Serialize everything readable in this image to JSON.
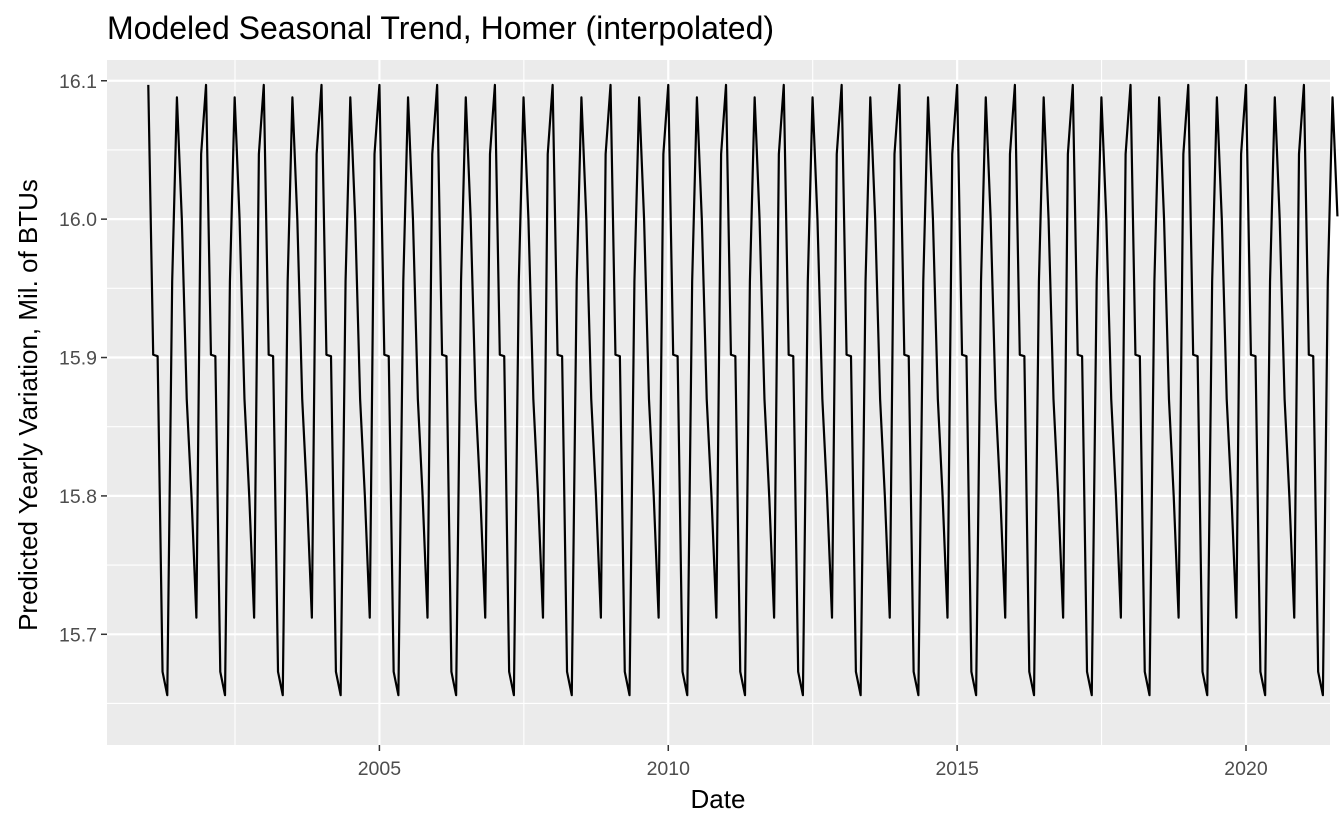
{
  "chart_data": {
    "type": "line",
    "title": "Modeled Seasonal Trend, Homer (interpolated)",
    "xlabel": "Date",
    "ylabel": "Predicted Yearly Variation, Mil. of BTUs",
    "xlim": [
      "2000-04-15",
      "2021-06-15"
    ],
    "ylim": [
      15.62,
      16.115
    ],
    "x_ticks": [
      {
        "label": "2005",
        "value": "2005-01-01"
      },
      {
        "label": "2010",
        "value": "2010-01-01"
      },
      {
        "label": "2015",
        "value": "2015-01-01"
      },
      {
        "label": "2020",
        "value": "2020-01-01"
      }
    ],
    "y_ticks": [
      {
        "label": "15.7",
        "value": 15.7
      },
      {
        "label": "15.8",
        "value": 15.8
      },
      {
        "label": "15.9",
        "value": 15.9
      },
      {
        "label": "16.0",
        "value": 16.0
      },
      {
        "label": "16.1",
        "value": 16.1
      }
    ],
    "grid": true,
    "panel_background": "#ebebeb",
    "grid_color": "#ffffff",
    "line_color": "#000000",
    "series": [
      {
        "start_date": "2001-01-01",
        "end_date": "2020-08-01",
        "step": "1 month",
        "values": [
          16.097,
          15.902,
          15.901,
          15.673,
          15.656,
          15.955,
          16.088,
          16.0,
          15.87,
          15.8,
          15.712,
          16.047,
          16.097,
          15.902,
          15.901,
          15.673,
          15.656,
          15.955,
          16.088,
          16.0,
          15.87,
          15.8,
          15.712,
          16.047,
          16.097,
          15.902,
          15.901,
          15.673,
          15.656,
          15.955,
          16.088,
          16.0,
          15.87,
          15.8,
          15.712,
          16.047,
          16.097,
          15.902,
          15.901,
          15.673,
          15.656,
          15.955,
          16.088,
          16.0,
          15.87,
          15.8,
          15.712,
          16.047,
          16.097,
          15.902,
          15.901,
          15.673,
          15.656,
          15.955,
          16.088,
          16.0,
          15.87,
          15.8,
          15.712,
          16.047,
          16.097,
          15.902,
          15.901,
          15.673,
          15.656,
          15.955,
          16.088,
          16.0,
          15.87,
          15.8,
          15.712,
          16.047,
          16.097,
          15.902,
          15.901,
          15.673,
          15.656,
          15.955,
          16.088,
          16.0,
          15.87,
          15.8,
          15.712,
          16.047,
          16.097,
          15.902,
          15.901,
          15.673,
          15.656,
          15.955,
          16.088,
          16.0,
          15.87,
          15.8,
          15.712,
          16.047,
          16.097,
          15.902,
          15.901,
          15.673,
          15.656,
          15.955,
          16.088,
          16.0,
          15.87,
          15.8,
          15.712,
          16.047,
          16.097,
          15.902,
          15.901,
          15.673,
          15.656,
          15.955,
          16.088,
          16.0,
          15.87,
          15.8,
          15.712,
          16.047,
          16.097,
          15.902,
          15.901,
          15.673,
          15.656,
          15.955,
          16.088,
          16.0,
          15.87,
          15.8,
          15.712,
          16.047,
          16.097,
          15.902,
          15.901,
          15.673,
          15.656,
          15.955,
          16.088,
          16.0,
          15.87,
          15.8,
          15.712,
          16.047,
          16.097,
          15.902,
          15.901,
          15.673,
          15.656,
          15.955,
          16.088,
          16.0,
          15.87,
          15.8,
          15.712,
          16.047,
          16.097,
          15.902,
          15.901,
          15.673,
          15.656,
          15.955,
          16.088,
          16.0,
          15.87,
          15.8,
          15.712,
          16.047,
          16.097,
          15.902,
          15.901,
          15.673,
          15.656,
          15.955,
          16.088,
          16.0,
          15.87,
          15.8,
          15.712,
          16.047,
          16.097,
          15.902,
          15.901,
          15.673,
          15.656,
          15.955,
          16.088,
          16.0,
          15.87,
          15.8,
          15.712,
          16.047,
          16.097,
          15.902,
          15.901,
          15.673,
          15.656,
          15.955,
          16.088,
          16.0,
          15.87,
          15.8,
          15.712,
          16.047,
          16.097,
          15.902,
          15.901,
          15.673,
          15.656,
          15.955,
          16.088,
          16.0,
          15.87,
          15.8,
          15.712,
          16.047,
          16.097,
          15.902,
          15.901,
          15.673,
          15.656,
          15.955,
          16.088,
          16.0,
          15.87,
          15.8,
          15.712,
          16.047,
          16.097,
          15.902,
          15.901,
          15.673,
          15.656,
          15.955,
          16.088,
          16.0,
          15.87,
          15.8,
          15.712,
          16.047,
          16.097,
          15.902,
          15.901,
          15.673,
          15.656,
          15.955,
          16.088,
          16.002
        ]
      }
    ]
  }
}
